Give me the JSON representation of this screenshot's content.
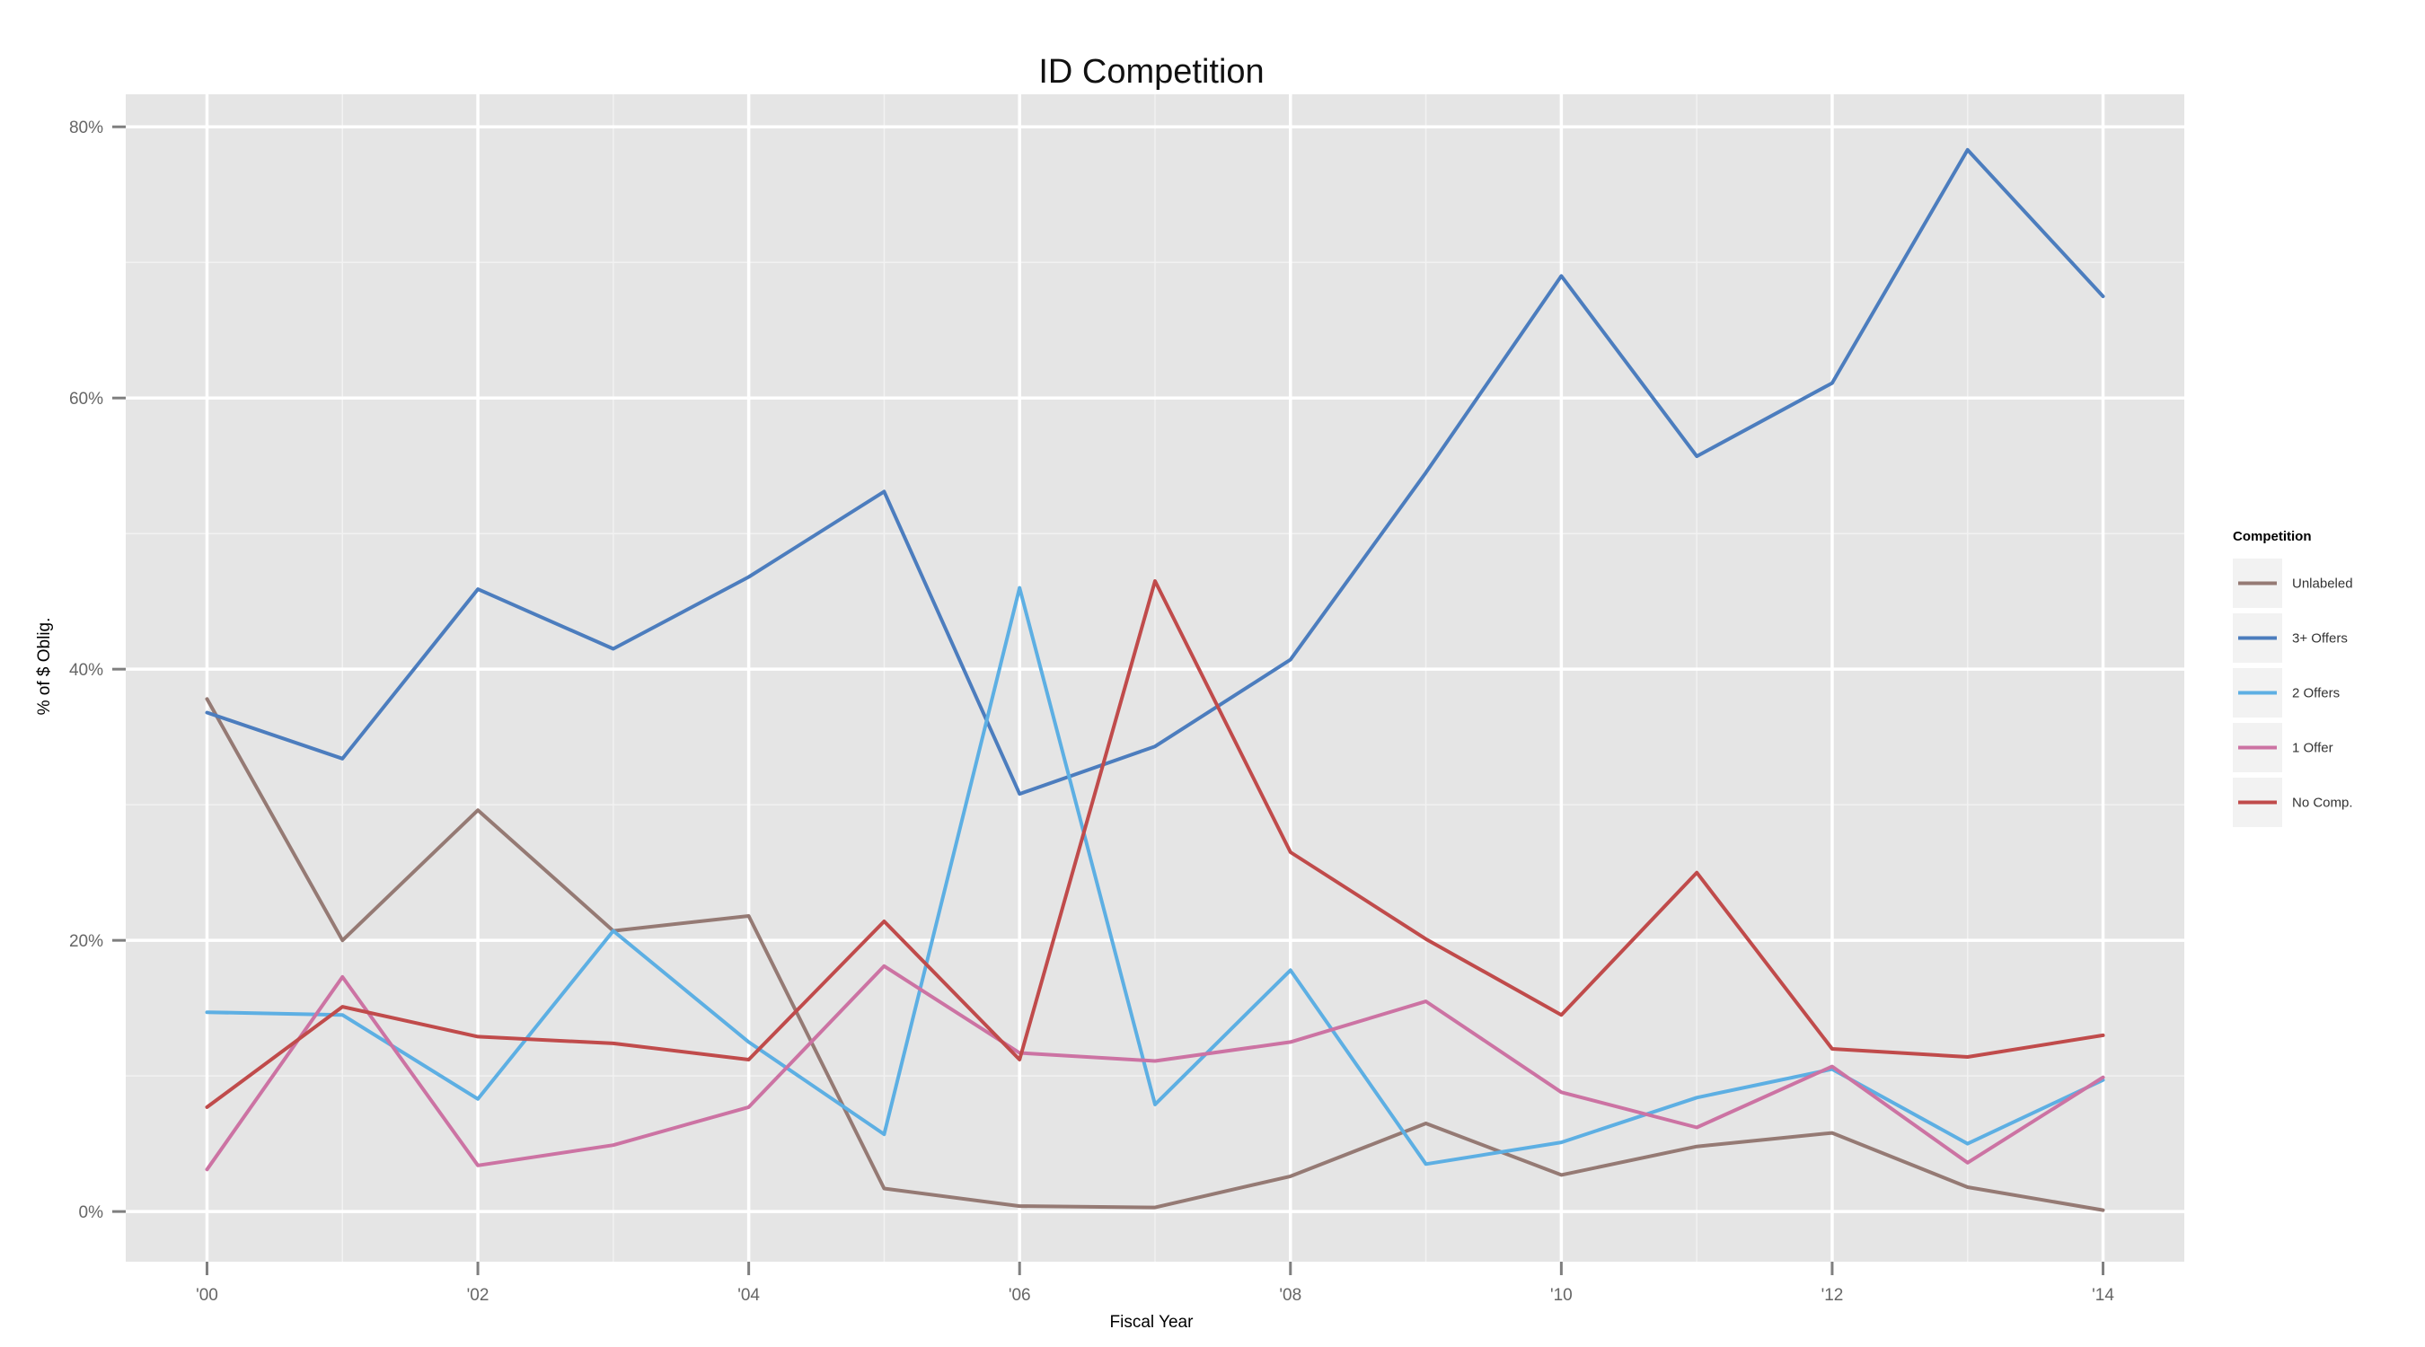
{
  "chart_data": {
    "type": "line",
    "title": "ID Competition",
    "xlabel": "Fiscal Year",
    "ylabel": "% of $ Oblig.",
    "x": [
      2000,
      2001,
      2002,
      2003,
      2004,
      2005,
      2006,
      2007,
      2008,
      2009,
      2010,
      2011,
      2012,
      2013,
      2014
    ],
    "xlim": [
      1999.4,
      2014.6
    ],
    "ylim": [
      -3.7,
      82.4
    ],
    "x_ticks": [
      2000,
      2002,
      2004,
      2006,
      2008,
      2010,
      2012,
      2014
    ],
    "x_tick_labels": [
      "'00",
      "'02",
      "'04",
      "'06",
      "'08",
      "'10",
      "'12",
      "'14"
    ],
    "y_ticks": [
      0,
      20,
      40,
      60,
      80
    ],
    "y_tick_labels": [
      "0%",
      "20%",
      "40%",
      "60%",
      "80%"
    ],
    "grid": true,
    "legend_title": "Competition",
    "legend_position": "right",
    "series": [
      {
        "name": "Unlabeled",
        "color": "#957A74",
        "values": [
          37.8,
          20.0,
          29.6,
          20.7,
          21.8,
          1.7,
          0.4,
          0.3,
          2.6,
          6.5,
          2.7,
          4.8,
          5.8,
          1.8,
          0.1
        ]
      },
      {
        "name": "3+ Offers",
        "color": "#4C7DBE",
        "values": [
          36.8,
          33.4,
          45.9,
          41.5,
          46.8,
          53.1,
          30.8,
          34.3,
          40.7,
          54.5,
          69.0,
          55.7,
          61.1,
          78.3,
          67.5
        ]
      },
      {
        "name": "2 Offers",
        "color": "#5DAFE3",
        "values": [
          14.7,
          14.5,
          8.3,
          20.7,
          12.5,
          5.7,
          46.0,
          7.9,
          17.8,
          3.5,
          5.1,
          8.4,
          10.5,
          5.0,
          9.7
        ]
      },
      {
        "name": "1 Offer",
        "color": "#CC73A3",
        "values": [
          3.1,
          17.3,
          3.4,
          4.9,
          7.7,
          18.1,
          11.7,
          11.1,
          12.5,
          15.5,
          8.8,
          6.2,
          10.7,
          3.6,
          9.9
        ]
      },
      {
        "name": "No Comp.",
        "color": "#C04B4B",
        "values": [
          7.7,
          15.1,
          12.9,
          12.4,
          11.2,
          21.4,
          11.2,
          46.5,
          26.5,
          20.1,
          14.5,
          25.0,
          12.0,
          11.4,
          13.0
        ]
      }
    ]
  }
}
